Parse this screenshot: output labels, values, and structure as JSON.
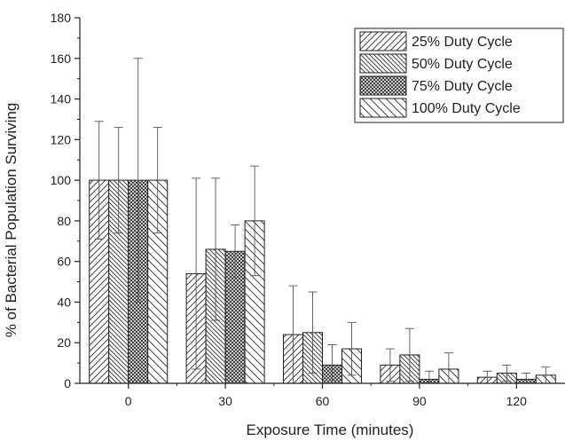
{
  "chart_data": {
    "type": "bar",
    "xlabel": "Exposure Time (minutes)",
    "ylabel": "% of Bacterial Population Surviving",
    "ylim": [
      0,
      180
    ],
    "yticks": [
      "0",
      "20",
      "40",
      "60",
      "80",
      "100",
      "120",
      "140",
      "160",
      "180"
    ],
    "categories": [
      "0",
      "30",
      "60",
      "90",
      "120"
    ],
    "legend_position": "top-right",
    "grid": false,
    "series": [
      {
        "name": "25% Duty Cycle",
        "pattern": "diagonal-up-right",
        "values": [
          100,
          54,
          24,
          9,
          3
        ],
        "error": [
          29,
          47,
          24,
          8,
          3
        ]
      },
      {
        "name": "50% Duty Cycle",
        "pattern": "diagonal-down-right",
        "values": [
          100,
          66,
          25,
          14,
          5
        ],
        "error": [
          26,
          35,
          20,
          13,
          4
        ]
      },
      {
        "name": "75% Duty Cycle",
        "pattern": "crosshatch",
        "values": [
          100,
          65,
          9,
          2,
          2
        ],
        "error": [
          60,
          13,
          10,
          4,
          3
        ]
      },
      {
        "name": "100% Duty Cycle",
        "pattern": "diagonal-down-right-wide",
        "values": [
          100,
          80,
          17,
          7,
          4
        ],
        "error": [
          26,
          27,
          13,
          8,
          4
        ]
      }
    ]
  }
}
